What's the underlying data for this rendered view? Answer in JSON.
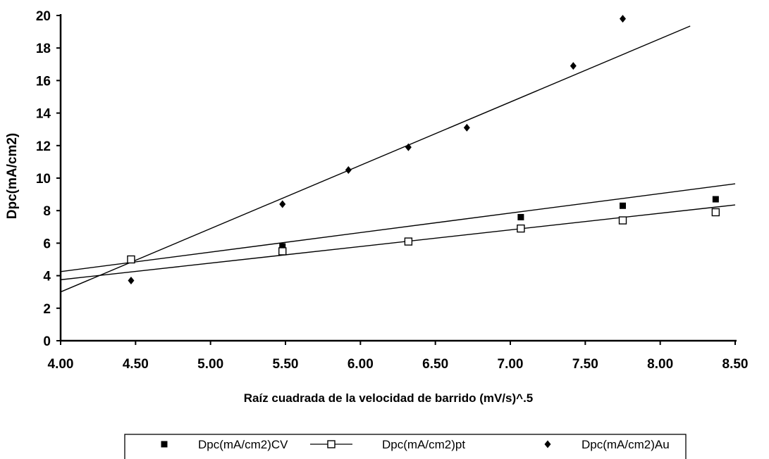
{
  "chart_data": {
    "type": "scatter",
    "title": "",
    "xlabel": "Raíz cuadrada de la velocidad de barrido (mV/s)^.5",
    "ylabel": "Dpc(mA/cm2)",
    "xlim": [
      4.0,
      8.5
    ],
    "ylim": [
      0,
      20
    ],
    "x_ticks": [
      "4.00",
      "4.50",
      "5.00",
      "5.50",
      "6.00",
      "6.50",
      "7.00",
      "7.50",
      "8.00",
      "8.50"
    ],
    "y_ticks": [
      "0",
      "2",
      "4",
      "6",
      "8",
      "10",
      "12",
      "14",
      "16",
      "18",
      "20"
    ],
    "grid": false,
    "legend_position": "bottom",
    "series": [
      {
        "name": "Dpc(mA/cm2)CV",
        "marker": "filled-square",
        "color": "#000000",
        "points": [
          [
            4.47,
            5.0
          ],
          [
            5.48,
            5.8
          ],
          [
            7.07,
            7.6
          ],
          [
            7.75,
            8.3
          ],
          [
            8.37,
            8.7
          ]
        ],
        "trendline": [
          [
            4.0,
            4.25
          ],
          [
            8.5,
            9.65
          ]
        ]
      },
      {
        "name": "Dpc(mA/cm2)pt",
        "marker": "open-square",
        "color": "#000000",
        "points": [
          [
            4.47,
            5.0
          ],
          [
            5.48,
            5.5
          ],
          [
            6.32,
            6.1
          ],
          [
            7.07,
            6.9
          ],
          [
            7.75,
            7.4
          ],
          [
            8.37,
            7.9
          ]
        ],
        "trendline": [
          [
            4.0,
            3.75
          ],
          [
            8.5,
            8.35
          ]
        ]
      },
      {
        "name": "Dpc(mA/cm2)Au",
        "marker": "filled-diamond",
        "color": "#000000",
        "points": [
          [
            4.47,
            3.7
          ],
          [
            5.48,
            8.4
          ],
          [
            5.92,
            10.5
          ],
          [
            6.32,
            11.9
          ],
          [
            6.71,
            13.1
          ],
          [
            7.42,
            16.9
          ],
          [
            7.75,
            19.8
          ]
        ],
        "trendline": [
          [
            4.0,
            3.0
          ],
          [
            8.2,
            19.35
          ]
        ]
      }
    ]
  }
}
